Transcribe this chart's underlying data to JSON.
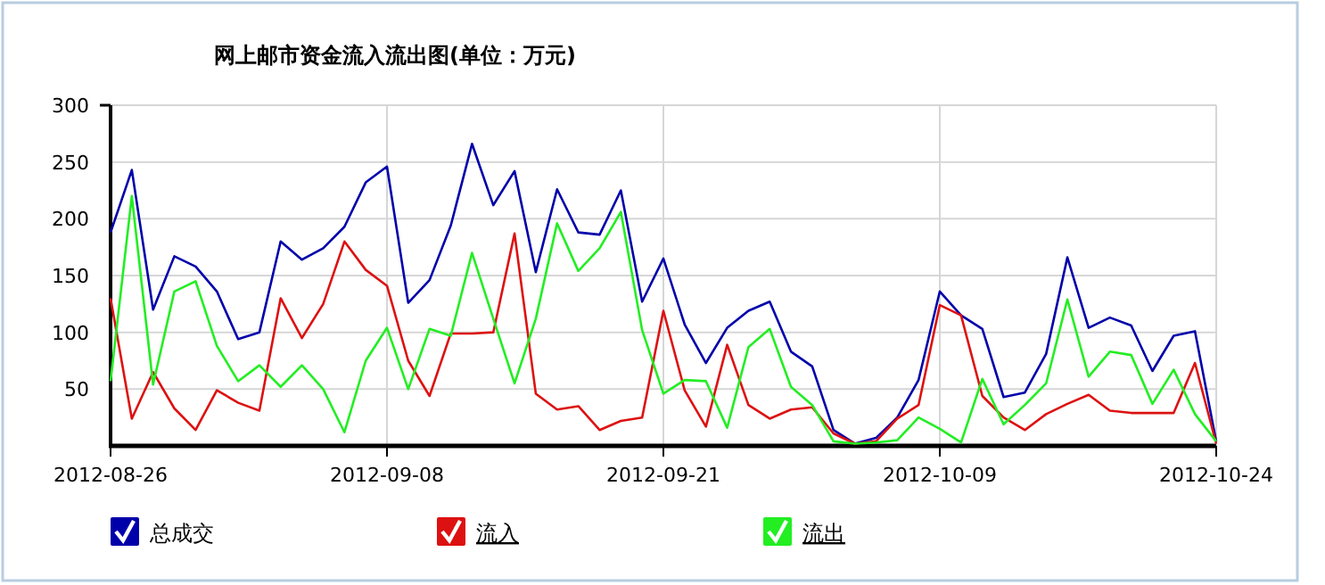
{
  "chart_data": {
    "type": "line",
    "title": "网上邮市资金流入流出图(单位：万元)",
    "categories": [
      "2012-08-26",
      null,
      null,
      null,
      null,
      null,
      null,
      null,
      null,
      null,
      null,
      null,
      null,
      "2012-09-08",
      null,
      null,
      null,
      null,
      null,
      null,
      null,
      null,
      null,
      null,
      null,
      null,
      "2012-09-21",
      null,
      null,
      null,
      null,
      null,
      null,
      null,
      null,
      null,
      null,
      null,
      null,
      "2012-10-09",
      null,
      null,
      null,
      null,
      null,
      null,
      null,
      null,
      null,
      null,
      null,
      null,
      "2012-10-24"
    ],
    "series": [
      {
        "name": "总成交",
        "color": "#0000aa",
        "values": [
          188,
          243,
          120,
          167,
          158,
          136,
          94,
          100,
          180,
          164,
          174,
          193,
          232,
          246,
          126,
          146,
          194,
          266,
          212,
          242,
          153,
          226,
          188,
          186,
          225,
          127,
          165,
          107,
          73,
          104,
          119,
          127,
          83,
          70,
          14,
          2,
          7,
          25,
          58,
          136,
          115,
          103,
          43,
          47,
          81,
          166,
          104,
          113,
          106,
          66,
          97,
          101,
          4
        ]
      },
      {
        "name": "流入",
        "color": "#dd1111",
        "values": [
          130,
          24,
          65,
          33,
          14,
          49,
          38,
          31,
          130,
          95,
          125,
          180,
          155,
          141,
          75,
          44,
          99,
          99,
          100,
          187,
          46,
          32,
          35,
          14,
          22,
          25,
          119,
          49,
          17,
          89,
          36,
          24,
          32,
          34,
          11,
          2,
          4,
          24,
          36,
          124,
          115,
          44,
          25,
          14,
          28,
          37,
          45,
          31,
          29,
          29,
          29,
          73,
          2
        ]
      },
      {
        "name": "流出",
        "color": "#22ee22",
        "values": [
          57,
          220,
          54,
          136,
          145,
          88,
          57,
          71,
          52,
          71,
          50,
          12,
          75,
          104,
          50,
          103,
          97,
          170,
          112,
          55,
          112,
          196,
          154,
          174,
          206,
          102,
          46,
          58,
          57,
          16,
          87,
          103,
          52,
          36,
          4,
          2,
          3,
          5,
          25,
          15,
          3,
          59,
          19,
          36,
          55,
          129,
          61,
          83,
          80,
          37,
          67,
          28,
          4
        ]
      }
    ],
    "ylim": [
      0,
      300
    ],
    "yticks": [
      50,
      100,
      150,
      200,
      250,
      300
    ],
    "grid": true,
    "legend": "bottom",
    "marker": "none",
    "line_style": "solid"
  }
}
